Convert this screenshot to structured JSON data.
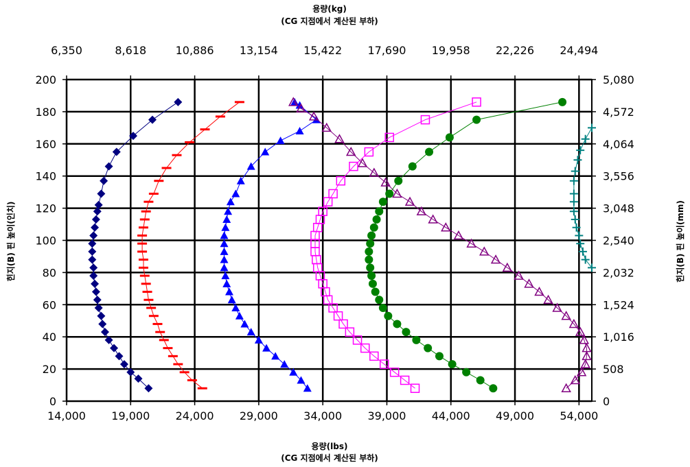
{
  "chart_data": {
    "type": "scatter",
    "title": "",
    "bottom_axis": {
      "label_line1": "용량(lbs)",
      "label_line2": "(CG 지점에서 계산된 부하)",
      "range": [
        14000,
        55000
      ],
      "ticks": [
        14000,
        19000,
        24000,
        29000,
        34000,
        39000,
        44000,
        49000,
        54000
      ],
      "tick_labels": [
        "14,000",
        "19,000",
        "24,000",
        "29,000",
        "34,000",
        "39,000",
        "44,000",
        "49,000",
        "54,000"
      ]
    },
    "top_axis": {
      "label_line1": "용량(kg)",
      "label_line2": "(CG 지점에서 계산된 부하)",
      "tick_labels": [
        "6,350",
        "8,618",
        "10,886",
        "13,154",
        "15,422",
        "17,690",
        "19,958",
        "22,226",
        "24,494"
      ]
    },
    "left_axis": {
      "label": "힌지(B) 핀 높이(인치)",
      "range": [
        0,
        200
      ],
      "ticks": [
        0,
        20,
        40,
        60,
        80,
        100,
        120,
        140,
        160,
        180,
        200
      ],
      "tick_labels": [
        "0",
        "20",
        "40",
        "60",
        "80",
        "100",
        "120",
        "140",
        "160",
        "180",
        "200"
      ]
    },
    "right_axis": {
      "label": "힌지(B) 핀 높이(mm)",
      "tick_labels": [
        "0",
        "508",
        "1,016",
        "1,524",
        "2,032",
        "2,540",
        "3,048",
        "3,556",
        "4,064",
        "4,572",
        "5,080"
      ]
    },
    "grid": "major-both",
    "legend": "none",
    "series": [
      {
        "color": "#000080",
        "marker": "diamond",
        "points": [
          [
            20400,
            8
          ],
          [
            19600,
            14
          ],
          [
            19000,
            18
          ],
          [
            18500,
            23
          ],
          [
            18100,
            28
          ],
          [
            17700,
            33
          ],
          [
            17300,
            38
          ],
          [
            17000,
            43
          ],
          [
            16800,
            48
          ],
          [
            16700,
            53
          ],
          [
            16500,
            58
          ],
          [
            16400,
            63
          ],
          [
            16300,
            68
          ],
          [
            16200,
            73
          ],
          [
            16100,
            78
          ],
          [
            16100,
            83
          ],
          [
            16000,
            88
          ],
          [
            16000,
            93
          ],
          [
            16000,
            98
          ],
          [
            16100,
            103
          ],
          [
            16200,
            108
          ],
          [
            16300,
            113
          ],
          [
            16400,
            118
          ],
          [
            16500,
            122
          ],
          [
            16700,
            129
          ],
          [
            16900,
            137
          ],
          [
            17300,
            146
          ],
          [
            17900,
            155
          ],
          [
            19200,
            165
          ],
          [
            20700,
            175
          ],
          [
            22700,
            186
          ]
        ]
      },
      {
        "color": "#ff0000",
        "marker": "dash",
        "points": [
          [
            24600,
            8
          ],
          [
            23800,
            13
          ],
          [
            23200,
            18
          ],
          [
            22700,
            23
          ],
          [
            22300,
            28
          ],
          [
            21900,
            33
          ],
          [
            21600,
            38
          ],
          [
            21300,
            43
          ],
          [
            21100,
            48
          ],
          [
            20800,
            53
          ],
          [
            20600,
            58
          ],
          [
            20400,
            63
          ],
          [
            20300,
            68
          ],
          [
            20200,
            73
          ],
          [
            20100,
            78
          ],
          [
            20000,
            83
          ],
          [
            20000,
            88
          ],
          [
            19900,
            93
          ],
          [
            19900,
            98
          ],
          [
            19900,
            103
          ],
          [
            20000,
            108
          ],
          [
            20100,
            113
          ],
          [
            20200,
            118
          ],
          [
            20400,
            124
          ],
          [
            20800,
            129
          ],
          [
            21200,
            137
          ],
          [
            21800,
            145
          ],
          [
            22600,
            153
          ],
          [
            23600,
            161
          ],
          [
            24800,
            169
          ],
          [
            26000,
            177
          ],
          [
            27500,
            186
          ]
        ]
      },
      {
        "color": "#0000ff",
        "marker": "triangle",
        "points": [
          [
            32800,
            8
          ],
          [
            32300,
            13
          ],
          [
            31700,
            18
          ],
          [
            31000,
            23
          ],
          [
            30300,
            28
          ],
          [
            29600,
            33
          ],
          [
            29000,
            38
          ],
          [
            28400,
            43
          ],
          [
            27900,
            48
          ],
          [
            27500,
            53
          ],
          [
            27200,
            58
          ],
          [
            26900,
            63
          ],
          [
            26700,
            68
          ],
          [
            26500,
            73
          ],
          [
            26400,
            78
          ],
          [
            26300,
            83
          ],
          [
            26300,
            88
          ],
          [
            26300,
            93
          ],
          [
            26300,
            98
          ],
          [
            26300,
            103
          ],
          [
            26400,
            108
          ],
          [
            26500,
            113
          ],
          [
            26600,
            118
          ],
          [
            26800,
            124
          ],
          [
            27200,
            129
          ],
          [
            27600,
            137
          ],
          [
            28400,
            146
          ],
          [
            29500,
            155
          ],
          [
            30700,
            162
          ],
          [
            32200,
            168
          ],
          [
            33500,
            175
          ],
          [
            32200,
            184
          ],
          [
            31800,
            186
          ]
        ]
      },
      {
        "color": "#800080",
        "marker": "triangle-open",
        "points": [
          [
            53000,
            8
          ],
          [
            53700,
            13
          ],
          [
            54200,
            18
          ],
          [
            54500,
            23
          ],
          [
            54600,
            28
          ],
          [
            54600,
            33
          ],
          [
            54400,
            38
          ],
          [
            54100,
            43
          ],
          [
            53600,
            48
          ],
          [
            53000,
            53
          ],
          [
            52300,
            58
          ],
          [
            51600,
            63
          ],
          [
            50900,
            68
          ],
          [
            50100,
            73
          ],
          [
            49300,
            78
          ],
          [
            48400,
            83
          ],
          [
            47500,
            88
          ],
          [
            46600,
            93
          ],
          [
            45600,
            98
          ],
          [
            44600,
            103
          ],
          [
            43600,
            108
          ],
          [
            42600,
            113
          ],
          [
            41700,
            118
          ],
          [
            40800,
            124
          ],
          [
            39800,
            129
          ],
          [
            38900,
            136
          ],
          [
            38000,
            142
          ],
          [
            37100,
            148
          ],
          [
            36200,
            155
          ],
          [
            35300,
            163
          ],
          [
            34300,
            170
          ],
          [
            33300,
            177
          ],
          [
            32300,
            182
          ],
          [
            31700,
            186
          ]
        ]
      },
      {
        "color": "#ff00ff",
        "marker": "square-open",
        "points": [
          [
            41200,
            8
          ],
          [
            40400,
            13
          ],
          [
            39600,
            18
          ],
          [
            38800,
            23
          ],
          [
            38000,
            28
          ],
          [
            37300,
            33
          ],
          [
            36700,
            38
          ],
          [
            36100,
            43
          ],
          [
            35600,
            48
          ],
          [
            35200,
            53
          ],
          [
            34800,
            58
          ],
          [
            34400,
            63
          ],
          [
            34200,
            68
          ],
          [
            34000,
            73
          ],
          [
            33800,
            78
          ],
          [
            33600,
            83
          ],
          [
            33500,
            88
          ],
          [
            33400,
            93
          ],
          [
            33400,
            98
          ],
          [
            33400,
            103
          ],
          [
            33600,
            108
          ],
          [
            33800,
            113
          ],
          [
            34000,
            118
          ],
          [
            34400,
            124
          ],
          [
            34800,
            129
          ],
          [
            35400,
            137
          ],
          [
            36400,
            146
          ],
          [
            37600,
            155
          ],
          [
            39200,
            164
          ],
          [
            42000,
            175
          ],
          [
            46000,
            186
          ]
        ]
      },
      {
        "color": "#008000",
        "marker": "circle",
        "points": [
          [
            47300,
            8
          ],
          [
            46300,
            13
          ],
          [
            45200,
            18
          ],
          [
            44100,
            23
          ],
          [
            43100,
            28
          ],
          [
            42200,
            33
          ],
          [
            41300,
            38
          ],
          [
            40500,
            43
          ],
          [
            39800,
            48
          ],
          [
            39100,
            53
          ],
          [
            38700,
            58
          ],
          [
            38400,
            63
          ],
          [
            38100,
            68
          ],
          [
            37900,
            73
          ],
          [
            37800,
            78
          ],
          [
            37700,
            83
          ],
          [
            37600,
            88
          ],
          [
            37600,
            93
          ],
          [
            37700,
            98
          ],
          [
            37800,
            103
          ],
          [
            38000,
            108
          ],
          [
            38200,
            113
          ],
          [
            38400,
            118
          ],
          [
            38700,
            124
          ],
          [
            39200,
            129
          ],
          [
            39900,
            137
          ],
          [
            41000,
            146
          ],
          [
            42300,
            155
          ],
          [
            43900,
            164
          ],
          [
            46000,
            175
          ],
          [
            52700,
            186
          ]
        ]
      },
      {
        "color": "#008080",
        "marker": "plus",
        "points": [
          [
            55000,
            83
          ],
          [
            54500,
            88
          ],
          [
            54300,
            93
          ],
          [
            54100,
            98
          ],
          [
            54000,
            103
          ],
          [
            53800,
            108
          ],
          [
            53700,
            113
          ],
          [
            53600,
            118
          ],
          [
            53600,
            124
          ],
          [
            53600,
            129
          ],
          [
            53600,
            137
          ],
          [
            53700,
            143
          ],
          [
            53900,
            150
          ],
          [
            54100,
            156
          ],
          [
            54500,
            163
          ],
          [
            55000,
            170
          ]
        ]
      }
    ]
  }
}
